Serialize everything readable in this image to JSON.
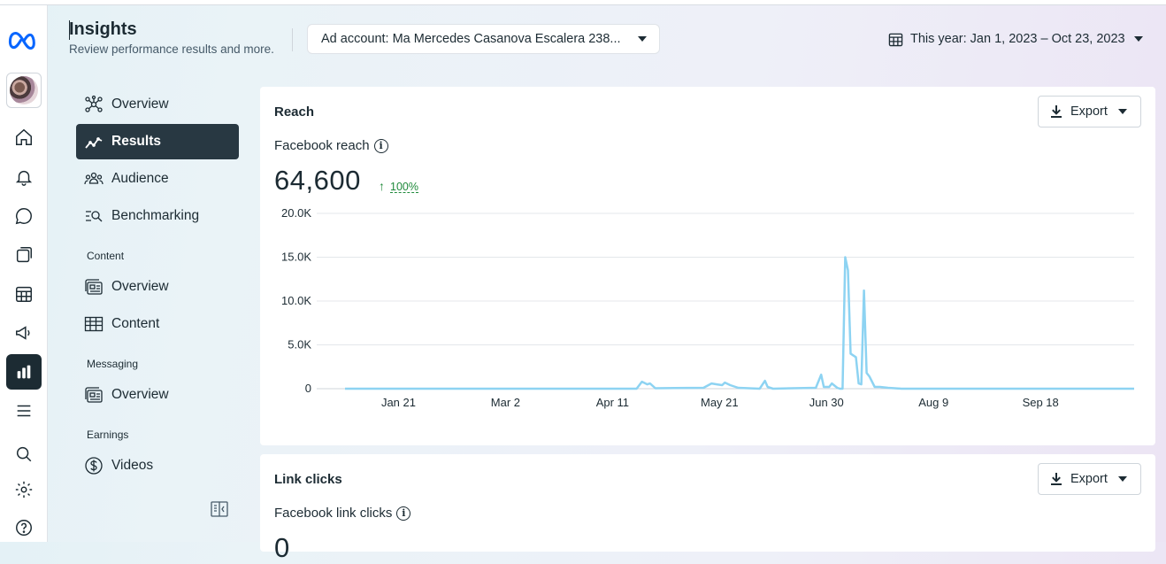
{
  "header": {
    "title": "Insights",
    "subtitle": "Review performance results and more.",
    "ad_account": "Ad account: Ma Mercedes Casanova Escalera 238...",
    "date_range": "This year: Jan 1, 2023 – Oct 23, 2023"
  },
  "rail": {
    "icons": [
      "meta-logo-icon",
      "avatar",
      "home-icon",
      "notifications-icon",
      "messages-icon",
      "content-icon",
      "planner-icon",
      "ads-icon",
      "insights-icon",
      "menu-icon",
      "search-icon",
      "settings-icon",
      "help-icon"
    ]
  },
  "nav": {
    "items": [
      {
        "label": "Overview"
      },
      {
        "label": "Results"
      },
      {
        "label": "Audience"
      },
      {
        "label": "Benchmarking"
      }
    ],
    "content_section": "Content",
    "content_items": [
      {
        "label": "Overview"
      },
      {
        "label": "Content"
      }
    ],
    "messaging_section": "Messaging",
    "messaging_items": [
      {
        "label": "Overview"
      }
    ],
    "earnings_section": "Earnings",
    "earnings_items": [
      {
        "label": "Videos"
      }
    ]
  },
  "reach_card": {
    "title": "Reach",
    "export_label": "Export",
    "metric_label": "Facebook reach",
    "value": "64,600",
    "change": "100%"
  },
  "link_card": {
    "title": "Link clicks",
    "export_label": "Export",
    "metric_label": "Facebook link clicks",
    "value": "0"
  },
  "colors": {
    "line": "#8dd3f2",
    "active_nav": "#283842",
    "positive": "#1f8a3b"
  },
  "chart_data": {
    "type": "line",
    "ylim": [
      0,
      20000
    ],
    "yticks": [
      0,
      5000,
      10000,
      15000,
      20000
    ],
    "ytick_labels": [
      "0",
      "5.0K",
      "10.0K",
      "15.0K",
      "20.0K"
    ],
    "xtick_labels": [
      "Jan 21",
      "Mar 2",
      "Apr 11",
      "May 21",
      "Jun 30",
      "Aug 9",
      "Sep 18"
    ],
    "xticks": [
      "2023-01-21",
      "2023-03-02",
      "2023-04-11",
      "2023-05-21",
      "2023-06-30",
      "2023-08-09",
      "2023-09-18"
    ],
    "xlim": [
      "2023-01-01",
      "2023-10-23"
    ],
    "grid": true,
    "series": [
      {
        "x": [
          "2023-01-01",
          "2023-04-20",
          "2023-04-22",
          "2023-04-24",
          "2023-04-25",
          "2023-04-27",
          "2023-05-15",
          "2023-05-18",
          "2023-05-20",
          "2023-05-22",
          "2023-05-23",
          "2023-05-25",
          "2023-05-28",
          "2023-06-05",
          "2023-06-07",
          "2023-06-08",
          "2023-06-10",
          "2023-06-26",
          "2023-06-28",
          "2023-06-29",
          "2023-07-01",
          "2023-07-02",
          "2023-07-04",
          "2023-07-05",
          "2023-07-06",
          "2023-07-07",
          "2023-07-08",
          "2023-07-09",
          "2023-07-11",
          "2023-07-12",
          "2023-07-13",
          "2023-07-14",
          "2023-07-15",
          "2023-07-16",
          "2023-07-18",
          "2023-07-20",
          "2023-07-23",
          "2023-07-28",
          "2023-10-23"
        ],
        "y": [
          0,
          0,
          800,
          500,
          600,
          50,
          100,
          600,
          500,
          400,
          700,
          400,
          100,
          0,
          900,
          200,
          0,
          100,
          1600,
          200,
          200,
          600,
          100,
          0,
          0,
          15000,
          13500,
          4000,
          3600,
          600,
          500,
          11200,
          1800,
          1400,
          200,
          200,
          100,
          0,
          0
        ]
      }
    ]
  }
}
